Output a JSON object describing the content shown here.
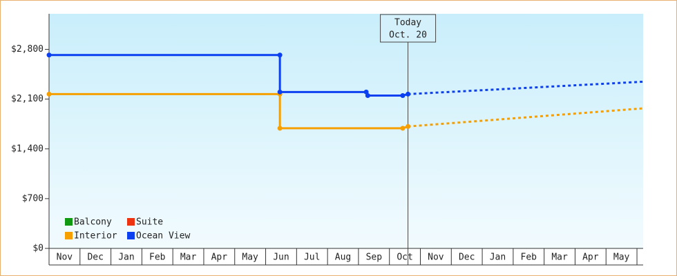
{
  "chart_data": {
    "type": "step-line",
    "categories": [
      "Nov",
      "Dec",
      "Jan",
      "Feb",
      "Mar",
      "Apr",
      "May",
      "Jun",
      "Jul",
      "Aug",
      "Sep",
      "Oct",
      "Nov",
      "Dec",
      "Jan",
      "Feb",
      "Mar",
      "Apr",
      "May"
    ],
    "xlim": [
      0,
      19.2
    ],
    "ylim": [
      0,
      3300
    ],
    "yticks": [
      {
        "value": 0,
        "label": "$0"
      },
      {
        "value": 700,
        "label": "$700"
      },
      {
        "value": 1400,
        "label": "$1,400"
      },
      {
        "value": 2100,
        "label": "$2,100"
      },
      {
        "value": 2800,
        "label": "$2,800"
      }
    ],
    "today": {
      "x": 11.6,
      "label": [
        "Today",
        "Oct. 20"
      ]
    },
    "series": [
      {
        "name": "Balcony",
        "color": "#119911",
        "x": [],
        "values": []
      },
      {
        "name": "Suite",
        "color": "#ee3311",
        "x": [],
        "values": []
      },
      {
        "name": "Interior",
        "color": "#f5a000",
        "x": [
          0,
          7.46,
          7.46,
          11.43,
          11.6
        ],
        "values": [
          2170,
          2170,
          1690,
          1690,
          1715
        ],
        "projection": {
          "x": [
            11.6,
            19.2
          ],
          "values": [
            1715,
            1970
          ]
        }
      },
      {
        "name": "Ocean View",
        "color": "#0b3ff0",
        "x": [
          0,
          7.46,
          7.46,
          10.25,
          10.3,
          11.43,
          11.6
        ],
        "values": [
          2720,
          2720,
          2200,
          2200,
          2150,
          2150,
          2170
        ],
        "projection": {
          "x": [
            11.6,
            19.2
          ],
          "values": [
            2170,
            2345
          ]
        }
      }
    ]
  }
}
